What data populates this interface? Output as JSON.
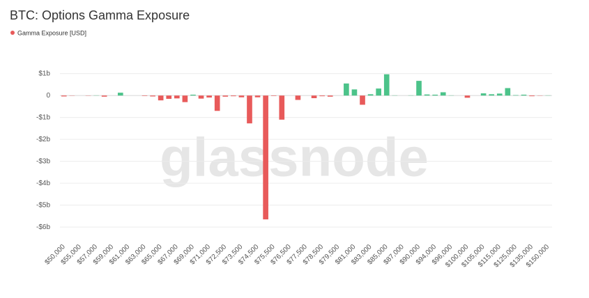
{
  "chart_data": {
    "type": "bar",
    "title": "BTC: Options Gamma Exposure",
    "watermark": "glassnode",
    "categories": [
      "$50,000",
      null,
      "$55,000",
      null,
      "$57,000",
      null,
      "$59,000",
      null,
      "$61,000",
      null,
      "$63,000",
      null,
      "$65,000",
      null,
      "$67,000",
      null,
      "$69,000",
      null,
      "$71,000",
      null,
      "$72,500",
      null,
      "$73,500",
      null,
      "$74,500",
      null,
      "$75,500",
      null,
      "$76,500",
      null,
      "$77,500",
      null,
      "$78,500",
      null,
      "$79,500",
      null,
      "$81,000",
      null,
      "$83,000",
      null,
      "$85,000",
      null,
      "$87,000",
      null,
      "$90,000",
      null,
      "$94,000",
      null,
      "$96,000",
      null,
      "$100,000",
      null,
      "$105,000",
      null,
      "$115,000",
      null,
      "$125,000",
      null,
      "$135,000",
      null,
      "$150,000"
    ],
    "series": [
      {
        "name": "Gamma Exposure [USD]",
        "color": "#e85a5a",
        "values": [
          -0.04,
          -0.01,
          0,
          -0.01,
          0.01,
          -0.05,
          0,
          0.13,
          0,
          0,
          -0.02,
          -0.04,
          -0.22,
          -0.15,
          -0.13,
          -0.3,
          0.04,
          -0.14,
          -0.09,
          -0.7,
          -0.05,
          -0.03,
          -0.08,
          -1.27,
          -0.08,
          -5.65,
          -0.02,
          -1.1,
          0,
          -0.2,
          0,
          -0.12,
          -0.03,
          -0.05,
          0,
          0.55,
          0.28,
          -0.42,
          0.06,
          0.32,
          0.97,
          0.01,
          0,
          0.01,
          0.67,
          0.05,
          0.04,
          0.15,
          0.01,
          0,
          -0.1,
          0,
          0.1,
          0.06,
          0.09,
          0.34,
          0.02,
          0.04,
          -0.03,
          -0.01,
          0.01
        ]
      }
    ],
    "colors": {
      "positive": "#4cc38a",
      "negative": "#e85a5a"
    },
    "ylim": [
      -6.6,
      1.5
    ],
    "yticks": [
      {
        "value": 1,
        "label": "$1b"
      },
      0,
      {
        "value": -1,
        "label": "-$1b"
      },
      {
        "value": -2,
        "label": "-$2b"
      },
      {
        "value": -3,
        "label": "-$3b"
      },
      {
        "value": -4,
        "label": "-$4b"
      },
      {
        "value": -5,
        "label": "-$5b"
      },
      {
        "value": -6,
        "label": "-$6b"
      }
    ],
    "grid": true
  }
}
